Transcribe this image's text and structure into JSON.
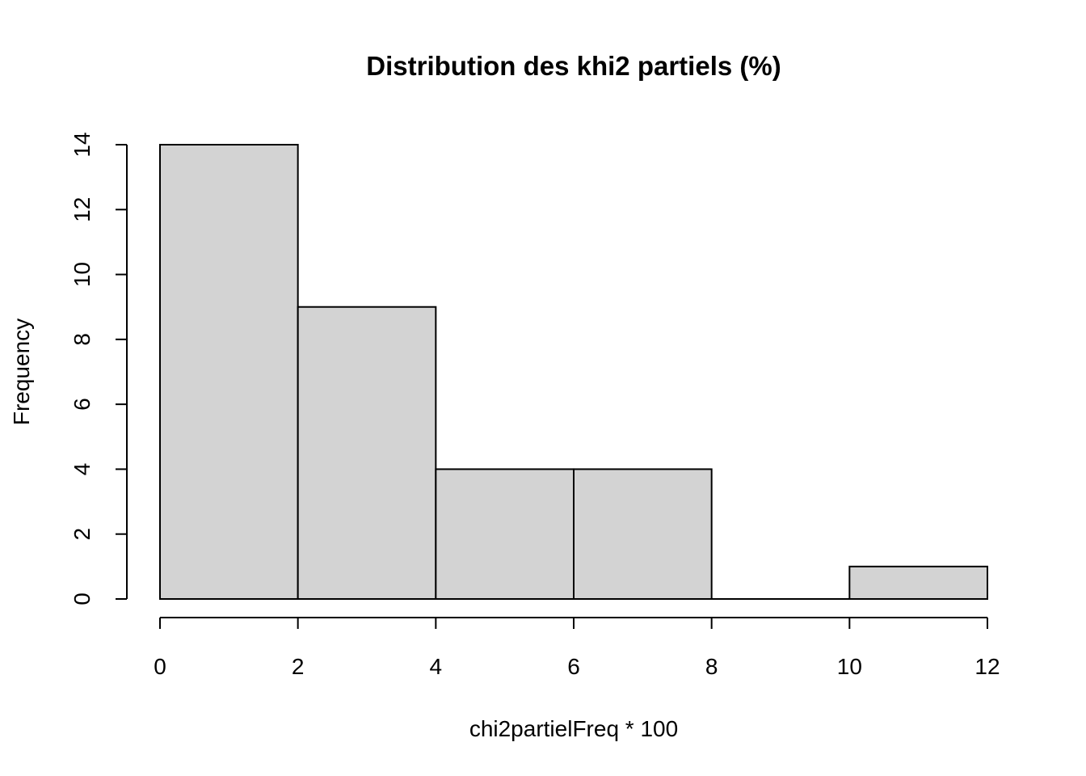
{
  "chart_data": {
    "type": "bar",
    "subtype": "histogram",
    "title": "Distribution des khi2 partiels (%)",
    "xlabel": "chi2partielFreq * 100",
    "ylabel": "Frequency",
    "bins": [
      [
        0,
        2
      ],
      [
        2,
        4
      ],
      [
        4,
        6
      ],
      [
        6,
        8
      ],
      [
        8,
        10
      ],
      [
        10,
        12
      ]
    ],
    "values": [
      14,
      9,
      4,
      4,
      0,
      1
    ],
    "xlim": [
      0,
      12
    ],
    "ylim": [
      0,
      14
    ],
    "xticks": [
      0,
      2,
      4,
      6,
      8,
      10,
      12
    ],
    "yticks": [
      0,
      2,
      4,
      6,
      8,
      10,
      12,
      14
    ],
    "bar_color": "#d3d3d3",
    "grid": false,
    "legend": "none"
  }
}
